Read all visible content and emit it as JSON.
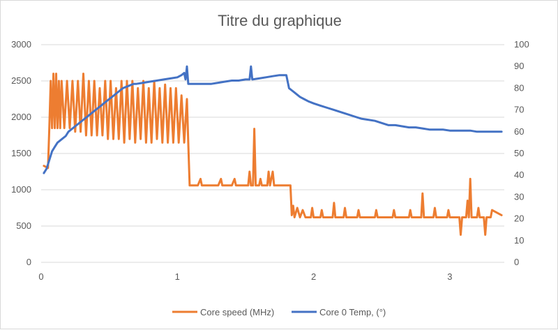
{
  "chart_data": {
    "type": "line",
    "title": "Titre du graphique",
    "xlabel": "",
    "ylabel": "",
    "xlim": [
      0,
      3.4
    ],
    "ylim": [
      0,
      3000
    ],
    "y2lim": [
      0,
      100
    ],
    "x_ticks": [
      "0",
      "1",
      "2",
      "3"
    ],
    "y_ticks": [
      "0",
      "500",
      "1000",
      "1500",
      "2000",
      "2500",
      "3000"
    ],
    "y2_ticks": [
      "0",
      "10",
      "20",
      "30",
      "40",
      "50",
      "60",
      "70",
      "80",
      "90",
      "100"
    ],
    "grid": true,
    "legend_position": "bottom",
    "series": [
      {
        "name": "Core speed (MHz)",
        "axis": "left",
        "color": "#ED7D31",
        "values": [
          [
            0.02,
            1330
          ],
          [
            0.05,
            1300
          ],
          [
            0.06,
            1850
          ],
          [
            0.07,
            2500
          ],
          [
            0.08,
            1850
          ],
          [
            0.09,
            2600
          ],
          [
            0.1,
            1850
          ],
          [
            0.11,
            2600
          ],
          [
            0.12,
            1850
          ],
          [
            0.13,
            2500
          ],
          [
            0.14,
            1850
          ],
          [
            0.15,
            2500
          ],
          [
            0.17,
            1850
          ],
          [
            0.19,
            2500
          ],
          [
            0.21,
            1850
          ],
          [
            0.23,
            2500
          ],
          [
            0.25,
            1800
          ],
          [
            0.27,
            2500
          ],
          [
            0.29,
            1800
          ],
          [
            0.31,
            2600
          ],
          [
            0.33,
            1750
          ],
          [
            0.35,
            2500
          ],
          [
            0.37,
            1750
          ],
          [
            0.39,
            2500
          ],
          [
            0.41,
            1750
          ],
          [
            0.43,
            2400
          ],
          [
            0.45,
            1750
          ],
          [
            0.47,
            2500
          ],
          [
            0.49,
            1700
          ],
          [
            0.51,
            2500
          ],
          [
            0.53,
            1700
          ],
          [
            0.55,
            2400
          ],
          [
            0.57,
            1700
          ],
          [
            0.59,
            2500
          ],
          [
            0.61,
            1650
          ],
          [
            0.63,
            2500
          ],
          [
            0.65,
            1700
          ],
          [
            0.67,
            2500
          ],
          [
            0.69,
            1650
          ],
          [
            0.71,
            2400
          ],
          [
            0.73,
            1700
          ],
          [
            0.75,
            2500
          ],
          [
            0.77,
            1650
          ],
          [
            0.79,
            2400
          ],
          [
            0.81,
            1650
          ],
          [
            0.83,
            2500
          ],
          [
            0.85,
            1700
          ],
          [
            0.87,
            2400
          ],
          [
            0.89,
            1650
          ],
          [
            0.91,
            2450
          ],
          [
            0.93,
            1650
          ],
          [
            0.95,
            2400
          ],
          [
            0.97,
            1650
          ],
          [
            0.99,
            2400
          ],
          [
            1.01,
            1650
          ],
          [
            1.03,
            2300
          ],
          [
            1.05,
            1650
          ],
          [
            1.07,
            2250
          ],
          [
            1.08,
            1650
          ],
          [
            1.09,
            1060
          ],
          [
            1.15,
            1060
          ],
          [
            1.17,
            1150
          ],
          [
            1.18,
            1060
          ],
          [
            1.3,
            1060
          ],
          [
            1.32,
            1150
          ],
          [
            1.33,
            1060
          ],
          [
            1.4,
            1060
          ],
          [
            1.42,
            1150
          ],
          [
            1.43,
            1060
          ],
          [
            1.52,
            1060
          ],
          [
            1.53,
            1250
          ],
          [
            1.54,
            1060
          ],
          [
            1.555,
            1060
          ],
          [
            1.565,
            1840
          ],
          [
            1.575,
            1060
          ],
          [
            1.6,
            1060
          ],
          [
            1.61,
            1150
          ],
          [
            1.62,
            1060
          ],
          [
            1.66,
            1060
          ],
          [
            1.67,
            1250
          ],
          [
            1.68,
            1060
          ],
          [
            1.7,
            1250
          ],
          [
            1.71,
            1060
          ],
          [
            1.83,
            1060
          ],
          [
            1.84,
            650
          ],
          [
            1.85,
            780
          ],
          [
            1.86,
            620
          ],
          [
            1.88,
            750
          ],
          [
            1.9,
            620
          ],
          [
            1.92,
            720
          ],
          [
            1.94,
            620
          ],
          [
            1.98,
            620
          ],
          [
            1.99,
            750
          ],
          [
            2.0,
            620
          ],
          [
            2.05,
            620
          ],
          [
            2.06,
            720
          ],
          [
            2.07,
            620
          ],
          [
            2.14,
            620
          ],
          [
            2.15,
            820
          ],
          [
            2.16,
            620
          ],
          [
            2.22,
            620
          ],
          [
            2.23,
            750
          ],
          [
            2.24,
            620
          ],
          [
            2.32,
            620
          ],
          [
            2.33,
            720
          ],
          [
            2.34,
            620
          ],
          [
            2.45,
            620
          ],
          [
            2.46,
            720
          ],
          [
            2.47,
            620
          ],
          [
            2.58,
            620
          ],
          [
            2.59,
            720
          ],
          [
            2.6,
            620
          ],
          [
            2.7,
            620
          ],
          [
            2.71,
            720
          ],
          [
            2.72,
            620
          ],
          [
            2.79,
            620
          ],
          [
            2.8,
            950
          ],
          [
            2.81,
            620
          ],
          [
            2.88,
            620
          ],
          [
            2.89,
            750
          ],
          [
            2.9,
            620
          ],
          [
            2.98,
            620
          ],
          [
            2.99,
            720
          ],
          [
            3.0,
            620
          ],
          [
            3.07,
            620
          ],
          [
            3.08,
            380
          ],
          [
            3.09,
            620
          ],
          [
            3.12,
            620
          ],
          [
            3.13,
            850
          ],
          [
            3.14,
            620
          ],
          [
            3.15,
            1150
          ],
          [
            3.16,
            620
          ],
          [
            3.2,
            620
          ],
          [
            3.21,
            750
          ],
          [
            3.22,
            620
          ],
          [
            3.25,
            620
          ],
          [
            3.26,
            380
          ],
          [
            3.27,
            620
          ],
          [
            3.3,
            620
          ],
          [
            3.31,
            720
          ],
          [
            3.38,
            650
          ]
        ]
      },
      {
        "name": "Core 0 Temp, (°)",
        "axis": "right",
        "color": "#4472C4",
        "values": [
          [
            0.02,
            41
          ],
          [
            0.04,
            43
          ],
          [
            0.06,
            47
          ],
          [
            0.08,
            51
          ],
          [
            0.1,
            53
          ],
          [
            0.12,
            55
          ],
          [
            0.14,
            56
          ],
          [
            0.16,
            57
          ],
          [
            0.18,
            58
          ],
          [
            0.2,
            60
          ],
          [
            0.22,
            61
          ],
          [
            0.24,
            62
          ],
          [
            0.26,
            63
          ],
          [
            0.28,
            64
          ],
          [
            0.3,
            65
          ],
          [
            0.32,
            66
          ],
          [
            0.34,
            67
          ],
          [
            0.36,
            68
          ],
          [
            0.38,
            69
          ],
          [
            0.4,
            70
          ],
          [
            0.42,
            71
          ],
          [
            0.44,
            72
          ],
          [
            0.46,
            73
          ],
          [
            0.48,
            74
          ],
          [
            0.5,
            75
          ],
          [
            0.52,
            76
          ],
          [
            0.54,
            77
          ],
          [
            0.56,
            78
          ],
          [
            0.58,
            79
          ],
          [
            0.6,
            80
          ],
          [
            0.62,
            80.5
          ],
          [
            0.64,
            81
          ],
          [
            0.66,
            81.5
          ],
          [
            0.68,
            82
          ],
          [
            0.7,
            82
          ],
          [
            0.75,
            82.5
          ],
          [
            0.8,
            83
          ],
          [
            0.85,
            83.5
          ],
          [
            0.9,
            84
          ],
          [
            0.95,
            84.5
          ],
          [
            1.0,
            85
          ],
          [
            1.03,
            86
          ],
          [
            1.05,
            87
          ],
          [
            1.06,
            84
          ],
          [
            1.07,
            90
          ],
          [
            1.08,
            82
          ],
          [
            1.15,
            82
          ],
          [
            1.2,
            82
          ],
          [
            1.25,
            82
          ],
          [
            1.3,
            82.5
          ],
          [
            1.35,
            83
          ],
          [
            1.4,
            83.5
          ],
          [
            1.45,
            83.5
          ],
          [
            1.5,
            84
          ],
          [
            1.53,
            84
          ],
          [
            1.54,
            90
          ],
          [
            1.55,
            84
          ],
          [
            1.6,
            84.5
          ],
          [
            1.65,
            85
          ],
          [
            1.7,
            85.5
          ],
          [
            1.75,
            86
          ],
          [
            1.8,
            86
          ],
          [
            1.82,
            80
          ],
          [
            1.84,
            79
          ],
          [
            1.86,
            78
          ],
          [
            1.88,
            77
          ],
          [
            1.9,
            76
          ],
          [
            1.93,
            75
          ],
          [
            1.96,
            74
          ],
          [
            2.0,
            73
          ],
          [
            2.05,
            72
          ],
          [
            2.1,
            71
          ],
          [
            2.15,
            70
          ],
          [
            2.2,
            69
          ],
          [
            2.25,
            68
          ],
          [
            2.3,
            67
          ],
          [
            2.35,
            66
          ],
          [
            2.4,
            65.5
          ],
          [
            2.45,
            65
          ],
          [
            2.5,
            64
          ],
          [
            2.55,
            63
          ],
          [
            2.6,
            63
          ],
          [
            2.65,
            62.5
          ],
          [
            2.7,
            62
          ],
          [
            2.75,
            62
          ],
          [
            2.8,
            61.5
          ],
          [
            2.85,
            61
          ],
          [
            2.9,
            61
          ],
          [
            2.95,
            61
          ],
          [
            3.0,
            60.5
          ],
          [
            3.05,
            60.5
          ],
          [
            3.1,
            60.5
          ],
          [
            3.15,
            60.5
          ],
          [
            3.2,
            60
          ],
          [
            3.25,
            60
          ],
          [
            3.3,
            60
          ],
          [
            3.35,
            60
          ],
          [
            3.38,
            60
          ]
        ]
      }
    ],
    "colors": {
      "grid": "#d9d9d9",
      "text": "#595959",
      "axis": "#bfbfbf"
    }
  }
}
